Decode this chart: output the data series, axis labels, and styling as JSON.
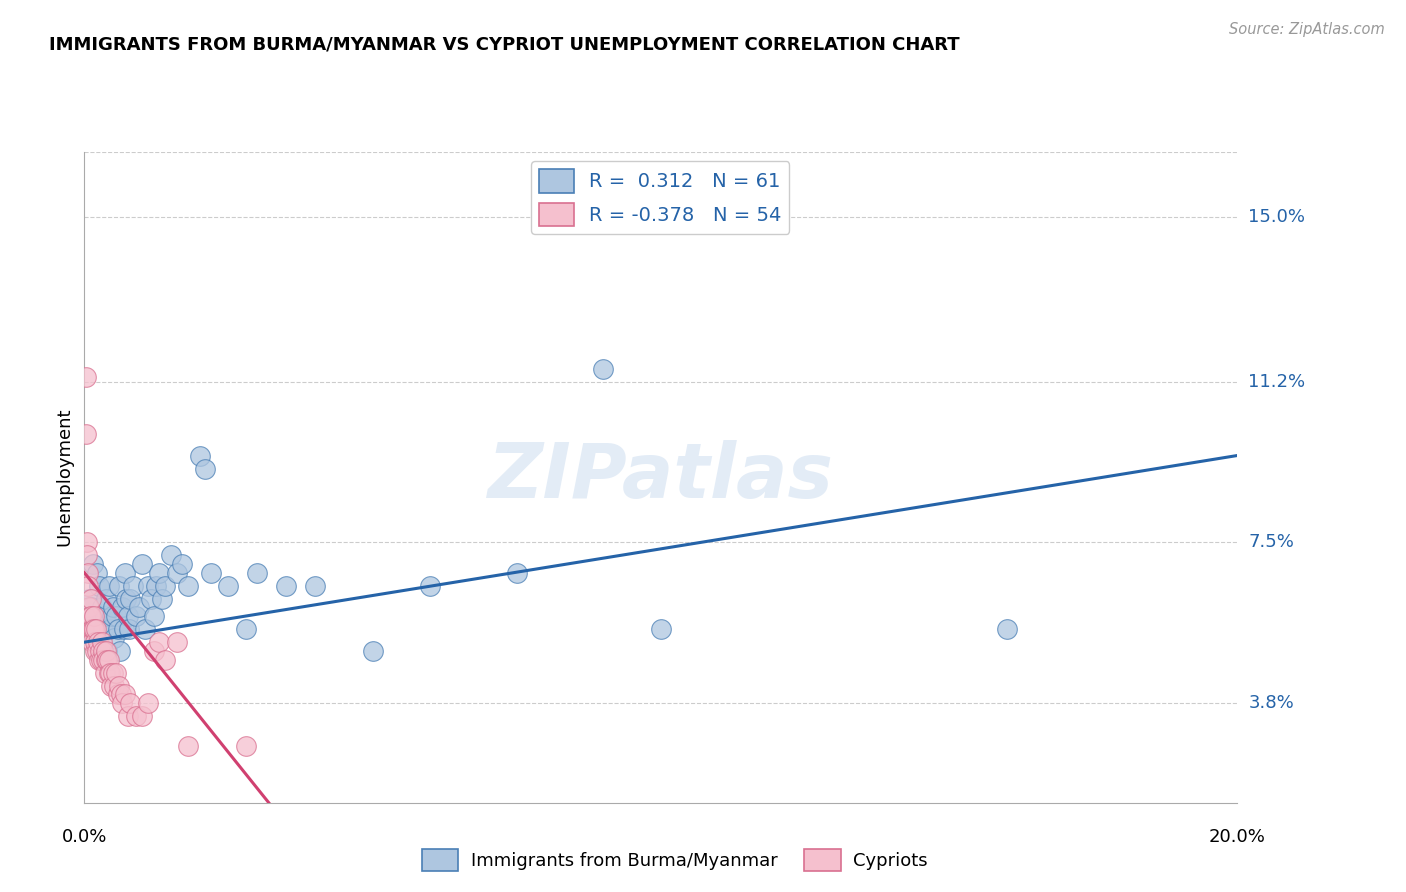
{
  "title": "IMMIGRANTS FROM BURMA/MYANMAR VS CYPRIOT UNEMPLOYMENT CORRELATION CHART",
  "source": "Source: ZipAtlas.com",
  "ylabel": "Unemployment",
  "ytick_labels": [
    "3.8%",
    "7.5%",
    "11.2%",
    "15.0%"
  ],
  "ytick_values": [
    3.8,
    7.5,
    11.2,
    15.0
  ],
  "xlim": [
    0.0,
    20.0
  ],
  "ylim": [
    1.5,
    16.5
  ],
  "blue_R": 0.312,
  "blue_N": 61,
  "pink_R": -0.378,
  "pink_N": 54,
  "blue_color": "#aec6e0",
  "blue_edge_color": "#4a7fb5",
  "blue_line_color": "#2563a8",
  "pink_color": "#f5c0ce",
  "pink_edge_color": "#d97090",
  "pink_line_color": "#d04070",
  "watermark": "ZIPatlas",
  "blue_scatter": [
    [
      0.05,
      5.5
    ],
    [
      0.08,
      6.2
    ],
    [
      0.1,
      5.8
    ],
    [
      0.12,
      6.0
    ],
    [
      0.15,
      7.0
    ],
    [
      0.18,
      5.5
    ],
    [
      0.2,
      5.8
    ],
    [
      0.22,
      6.8
    ],
    [
      0.25,
      6.5
    ],
    [
      0.28,
      5.2
    ],
    [
      0.3,
      6.0
    ],
    [
      0.32,
      5.5
    ],
    [
      0.35,
      5.8
    ],
    [
      0.38,
      6.2
    ],
    [
      0.4,
      5.0
    ],
    [
      0.42,
      6.5
    ],
    [
      0.45,
      5.5
    ],
    [
      0.48,
      5.8
    ],
    [
      0.5,
      6.0
    ],
    [
      0.52,
      5.3
    ],
    [
      0.55,
      5.8
    ],
    [
      0.58,
      5.5
    ],
    [
      0.6,
      6.5
    ],
    [
      0.62,
      5.0
    ],
    [
      0.65,
      6.0
    ],
    [
      0.68,
      5.5
    ],
    [
      0.7,
      6.8
    ],
    [
      0.72,
      6.2
    ],
    [
      0.75,
      5.8
    ],
    [
      0.78,
      5.5
    ],
    [
      0.8,
      6.2
    ],
    [
      0.85,
      6.5
    ],
    [
      0.9,
      5.8
    ],
    [
      0.95,
      6.0
    ],
    [
      1.0,
      7.0
    ],
    [
      1.05,
      5.5
    ],
    [
      1.1,
      6.5
    ],
    [
      1.15,
      6.2
    ],
    [
      1.2,
      5.8
    ],
    [
      1.25,
      6.5
    ],
    [
      1.3,
      6.8
    ],
    [
      1.35,
      6.2
    ],
    [
      1.4,
      6.5
    ],
    [
      1.5,
      7.2
    ],
    [
      1.6,
      6.8
    ],
    [
      1.7,
      7.0
    ],
    [
      1.8,
      6.5
    ],
    [
      2.0,
      9.5
    ],
    [
      2.1,
      9.2
    ],
    [
      2.2,
      6.8
    ],
    [
      2.5,
      6.5
    ],
    [
      2.8,
      5.5
    ],
    [
      3.0,
      6.8
    ],
    [
      3.5,
      6.5
    ],
    [
      4.0,
      6.5
    ],
    [
      5.0,
      5.0
    ],
    [
      6.0,
      6.5
    ],
    [
      7.5,
      6.8
    ],
    [
      10.0,
      5.5
    ],
    [
      16.0,
      5.5
    ],
    [
      9.0,
      11.5
    ]
  ],
  "pink_scatter": [
    [
      0.02,
      11.3
    ],
    [
      0.03,
      10.0
    ],
    [
      0.04,
      7.5
    ],
    [
      0.05,
      7.2
    ],
    [
      0.06,
      6.8
    ],
    [
      0.07,
      6.5
    ],
    [
      0.08,
      6.0
    ],
    [
      0.09,
      5.8
    ],
    [
      0.1,
      5.5
    ],
    [
      0.11,
      6.2
    ],
    [
      0.12,
      5.8
    ],
    [
      0.13,
      5.5
    ],
    [
      0.14,
      5.2
    ],
    [
      0.15,
      5.5
    ],
    [
      0.16,
      5.8
    ],
    [
      0.17,
      5.5
    ],
    [
      0.18,
      5.0
    ],
    [
      0.19,
      5.2
    ],
    [
      0.2,
      5.5
    ],
    [
      0.22,
      5.0
    ],
    [
      0.24,
      5.2
    ],
    [
      0.25,
      4.8
    ],
    [
      0.27,
      5.0
    ],
    [
      0.28,
      4.8
    ],
    [
      0.3,
      5.2
    ],
    [
      0.32,
      5.0
    ],
    [
      0.33,
      4.8
    ],
    [
      0.35,
      4.5
    ],
    [
      0.37,
      4.8
    ],
    [
      0.38,
      5.0
    ],
    [
      0.4,
      4.8
    ],
    [
      0.42,
      4.5
    ],
    [
      0.43,
      4.8
    ],
    [
      0.45,
      4.5
    ],
    [
      0.47,
      4.2
    ],
    [
      0.5,
      4.5
    ],
    [
      0.52,
      4.2
    ],
    [
      0.55,
      4.5
    ],
    [
      0.58,
      4.0
    ],
    [
      0.6,
      4.2
    ],
    [
      0.63,
      4.0
    ],
    [
      0.65,
      3.8
    ],
    [
      0.7,
      4.0
    ],
    [
      0.75,
      3.5
    ],
    [
      0.8,
      3.8
    ],
    [
      0.9,
      3.5
    ],
    [
      1.0,
      3.5
    ],
    [
      1.1,
      3.8
    ],
    [
      1.2,
      5.0
    ],
    [
      1.3,
      5.2
    ],
    [
      1.4,
      4.8
    ],
    [
      1.6,
      5.2
    ],
    [
      1.8,
      2.8
    ],
    [
      2.8,
      2.8
    ]
  ],
  "blue_trend_x": [
    0.0,
    20.0
  ],
  "blue_trend_y": [
    5.2,
    9.5
  ],
  "pink_trend_x": [
    0.0,
    3.2
  ],
  "pink_trend_y": [
    6.8,
    1.5
  ]
}
